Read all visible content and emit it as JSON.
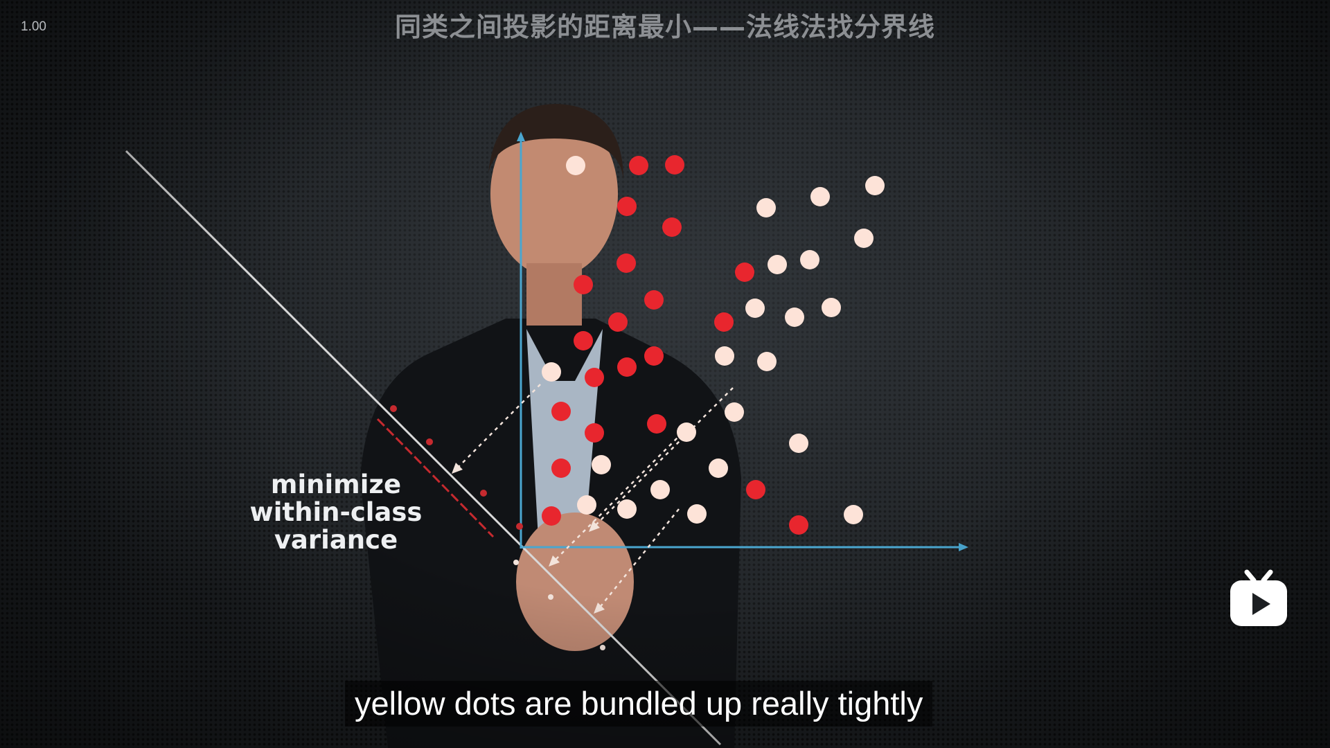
{
  "player": {
    "speed": "1.00",
    "title": "同类之间投影的距离最小——法线法找分界线",
    "subtitle": "yellow dots are bundled up really tightly",
    "logo_icon": "bilibili-tv-icon"
  },
  "slide": {
    "label_lines": [
      "minimize",
      "within-class",
      "variance"
    ],
    "colors": {
      "red": "#e8262e",
      "light": "#fde3d8",
      "axis": "#4aa6cf",
      "line": "#d8d8d8"
    }
  }
}
